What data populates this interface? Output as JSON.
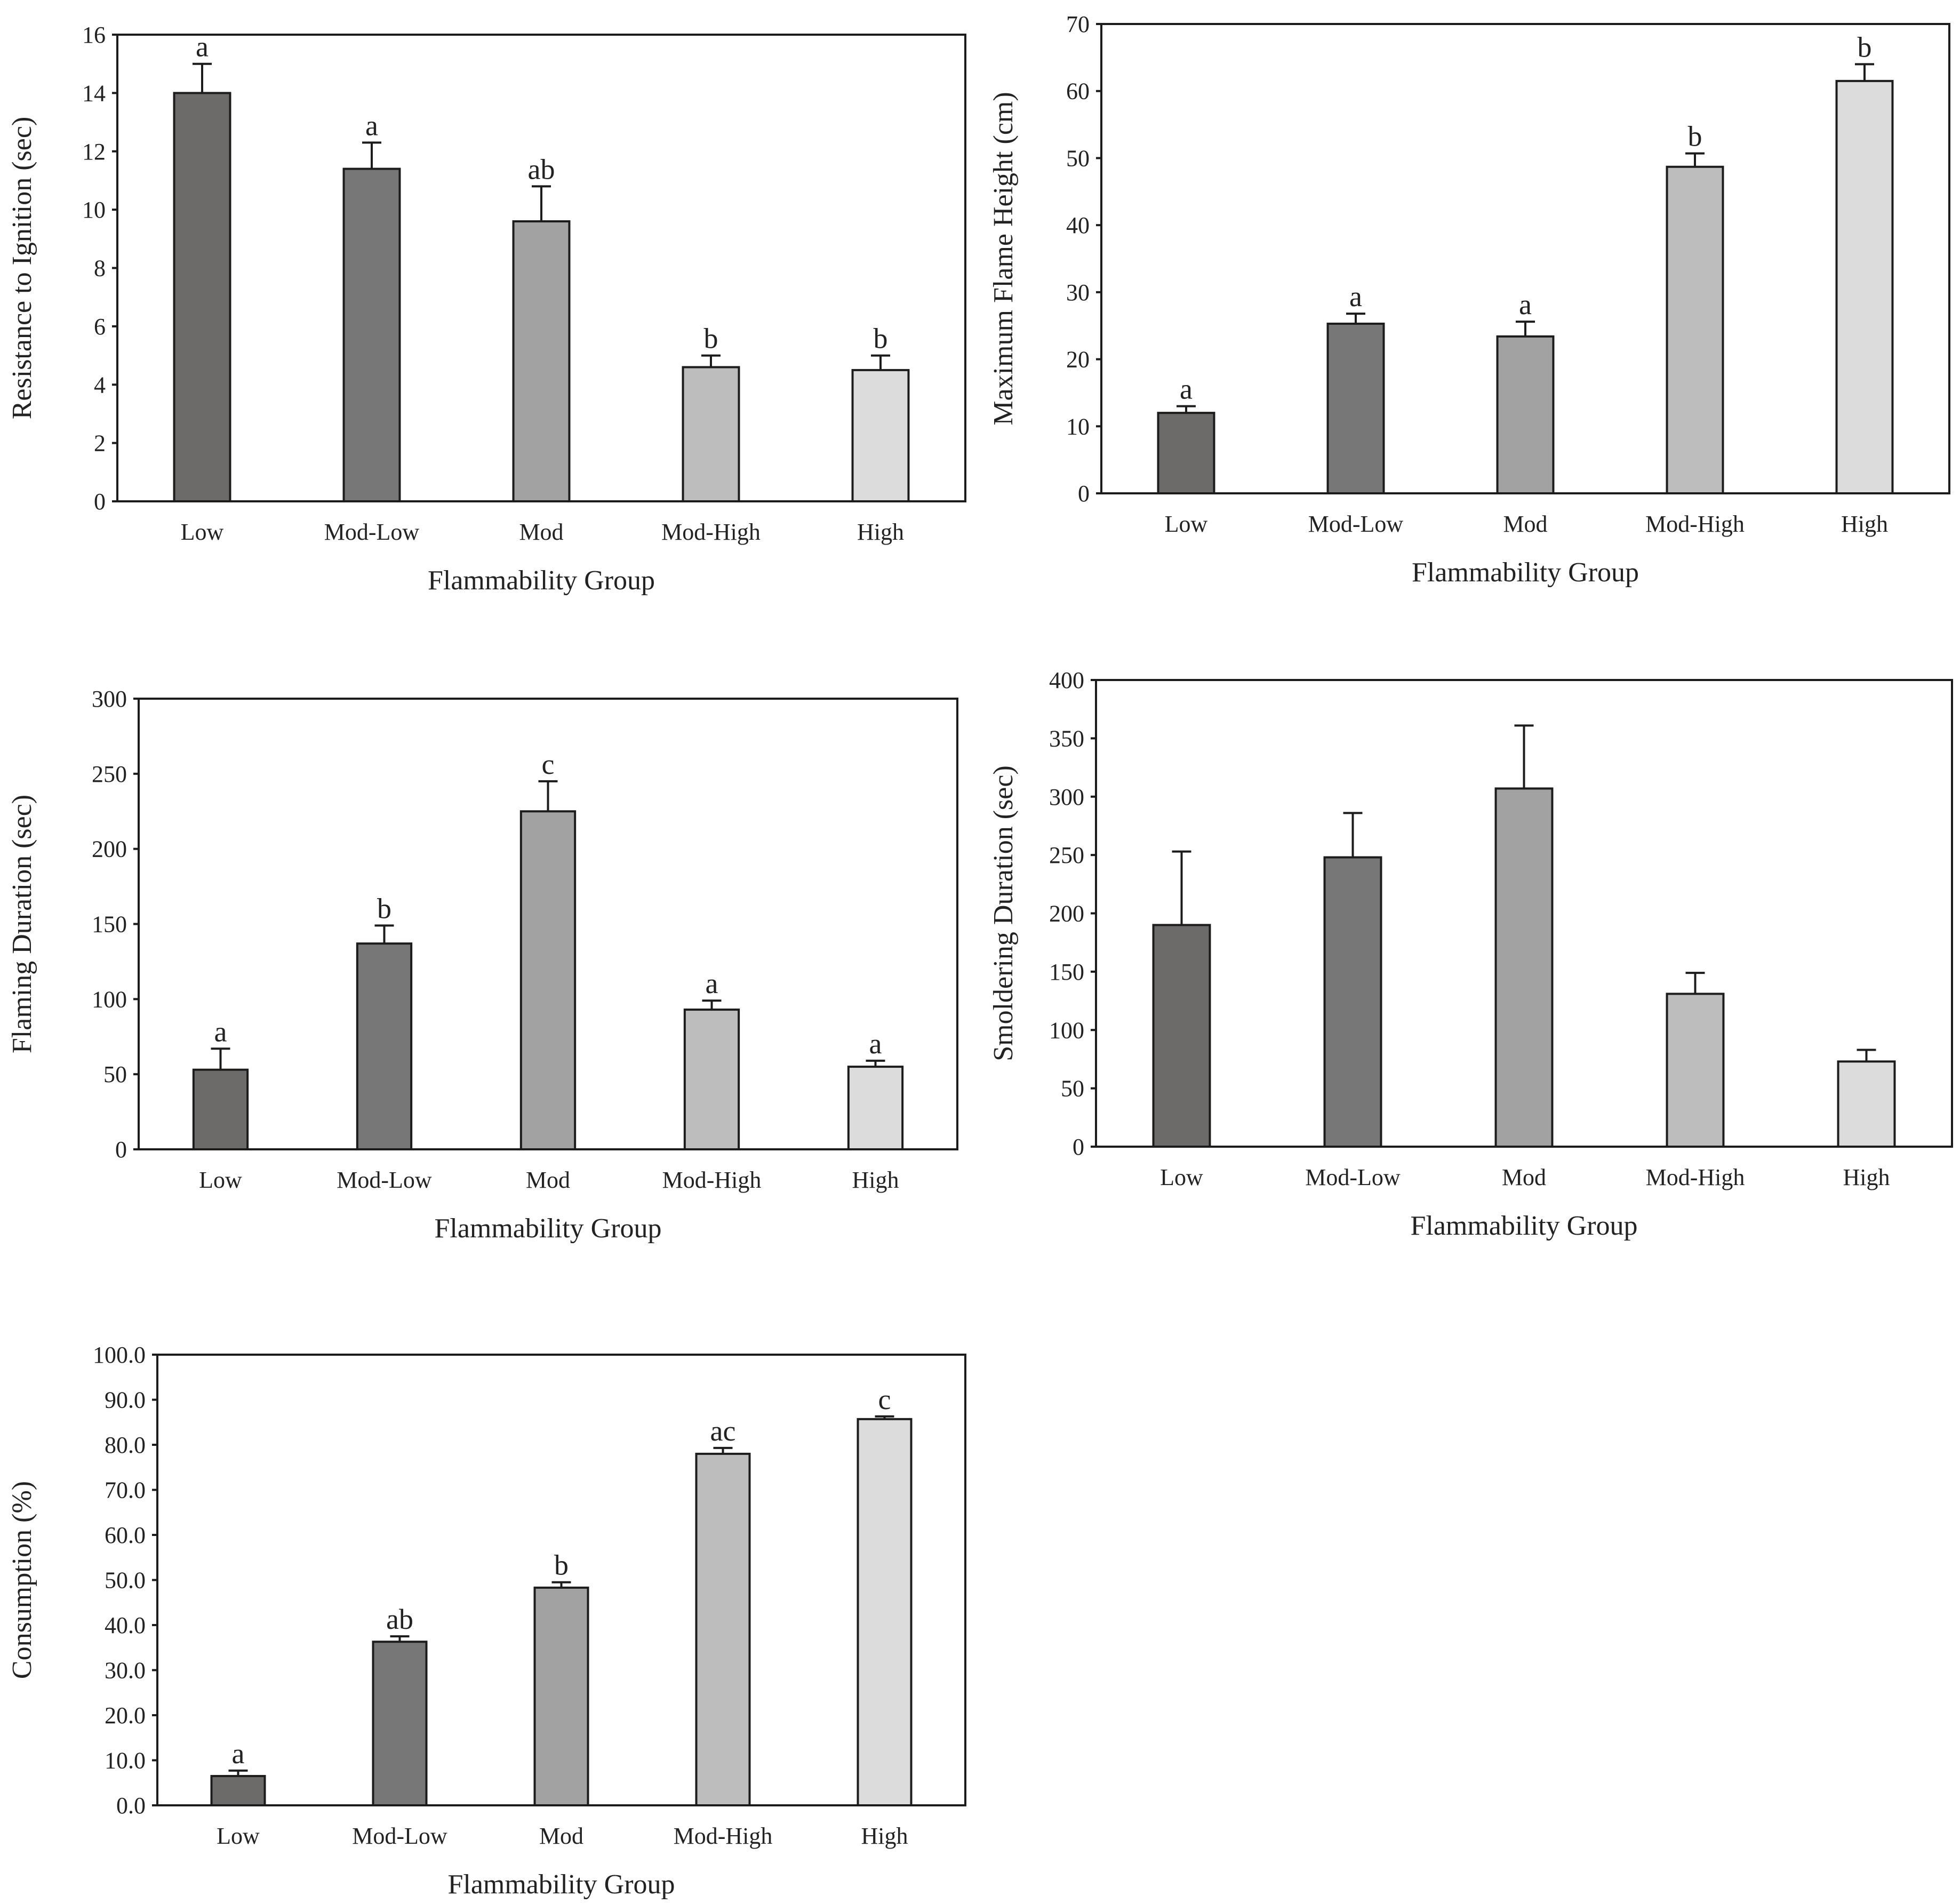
{
  "chart_data": [
    {
      "type": "bar",
      "categories": [
        "Low",
        "Mod-Low",
        "Mod",
        "Mod-High",
        "High"
      ],
      "values": [
        14.0,
        11.4,
        9.6,
        4.6,
        4.5
      ],
      "errors": [
        1.0,
        0.9,
        1.2,
        0.4,
        0.5
      ],
      "significance": [
        "a",
        "a",
        "ab",
        "b",
        "b"
      ],
      "xlabel": "Flammability Group",
      "ylabel": "Resistance to Ignition (sec)",
      "ylim": [
        0,
        16
      ],
      "yticks": [
        "0",
        "2",
        "4",
        "6",
        "8",
        "10",
        "12",
        "14",
        "16"
      ],
      "colors": [
        "#6d6a6a",
        "#777777",
        "#a2a2a2",
        "#bdbdbd",
        "#dcdcdc"
      ]
    },
    {
      "type": "bar",
      "categories": [
        "Low",
        "Mod-Low",
        "Mod",
        "Mod-High",
        "High"
      ],
      "values": [
        12.0,
        25.3,
        23.4,
        48.7,
        61.5
      ],
      "errors": [
        1.0,
        1.5,
        2.2,
        2.0,
        2.5
      ],
      "significance": [
        "a",
        "a",
        "a",
        "b",
        "b"
      ],
      "xlabel": "Flammability Group",
      "ylabel": "Maximum Flame Height (cm)",
      "ylim": [
        0,
        70
      ],
      "yticks": [
        "0",
        "10",
        "20",
        "30",
        "40",
        "50",
        "60",
        "70"
      ],
      "colors": [
        "#6d6a6a",
        "#777777",
        "#a2a2a2",
        "#bdbdbd",
        "#dcdcdc"
      ]
    },
    {
      "type": "bar",
      "categories": [
        "Low",
        "Mod-Low",
        "Mod",
        "Mod-High",
        "High"
      ],
      "values": [
        53,
        137,
        225,
        93,
        55
      ],
      "errors": [
        14,
        12,
        20,
        6,
        4
      ],
      "significance": [
        "a",
        "b",
        "c",
        "a",
        "a"
      ],
      "xlabel": "Flammability Group",
      "ylabel": "Flaming Duration (sec)",
      "ylim": [
        0,
        300
      ],
      "yticks": [
        "0",
        "50",
        "100",
        "150",
        "200",
        "250",
        "300"
      ],
      "colors": [
        "#6d6a6a",
        "#777777",
        "#a2a2a2",
        "#bdbdbd",
        "#dcdcdc"
      ]
    },
    {
      "type": "bar",
      "categories": [
        "Low",
        "Mod-Low",
        "Mod",
        "Mod-High",
        "High"
      ],
      "values": [
        190,
        248,
        307,
        131,
        73
      ],
      "errors": [
        63,
        38,
        54,
        18,
        10
      ],
      "significance": [
        "",
        "",
        "",
        "",
        ""
      ],
      "xlabel": "Flammability Group",
      "ylabel": "Smoldering Duration (sec)",
      "ylim": [
        0,
        400
      ],
      "yticks": [
        "0",
        "50",
        "100",
        "150",
        "200",
        "250",
        "300",
        "350",
        "400"
      ],
      "colors": [
        "#6d6a6a",
        "#777777",
        "#a2a2a2",
        "#bdbdbd",
        "#dcdcdc"
      ]
    },
    {
      "type": "bar",
      "categories": [
        "Low",
        "Mod-Low",
        "Mod",
        "Mod-High",
        "High"
      ],
      "values": [
        6.5,
        36.3,
        48.3,
        78.0,
        85.7
      ],
      "errors": [
        1.2,
        1.2,
        1.2,
        1.3,
        0.6
      ],
      "significance": [
        "a",
        "ab",
        "b",
        "ac",
        "c"
      ],
      "xlabel": "Flammability Group",
      "ylabel": "Consumption (%)",
      "ylim": [
        0,
        100
      ],
      "yticks": [
        "0.0",
        "10.0",
        "20.0",
        "30.0",
        "40.0",
        "50.0",
        "60.0",
        "70.0",
        "80.0",
        "90.0",
        "100.0"
      ],
      "colors": [
        "#6d6a6a",
        "#777777",
        "#a2a2a2",
        "#bdbdbd",
        "#dcdcdc"
      ]
    }
  ]
}
